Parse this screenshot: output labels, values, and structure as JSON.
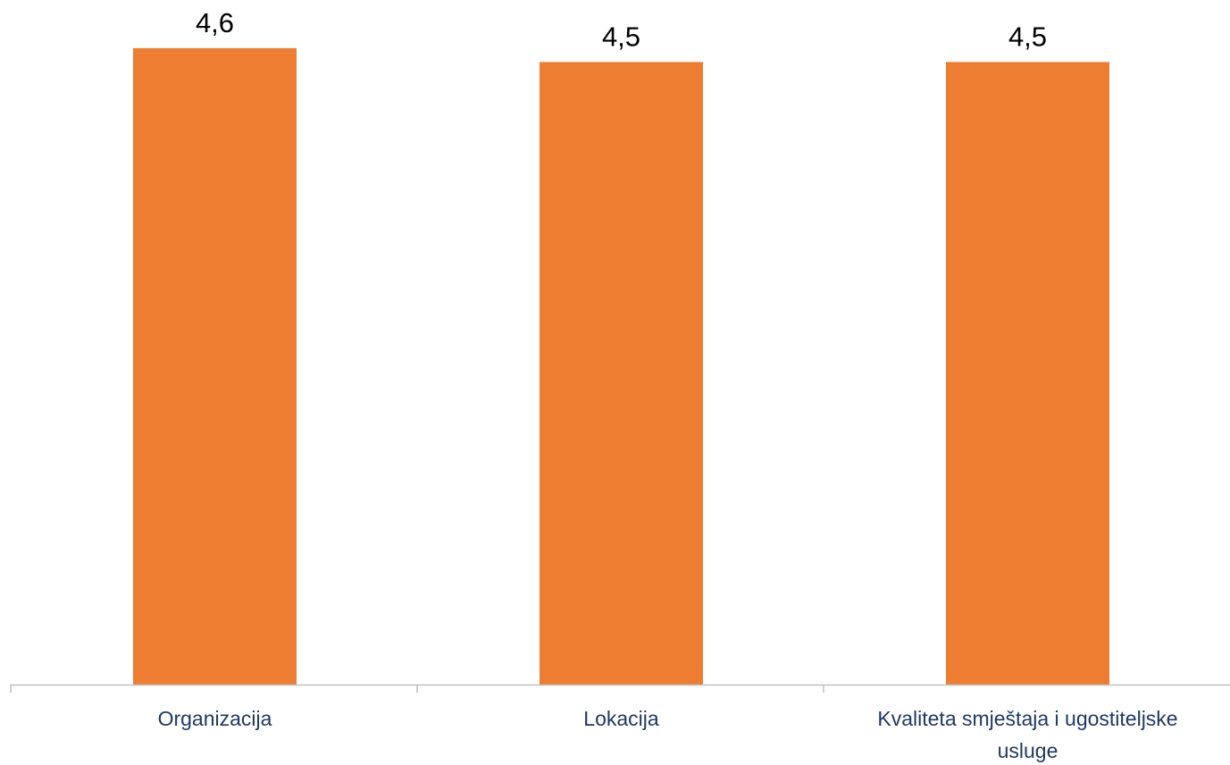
{
  "chart_data": {
    "type": "bar",
    "categories": [
      [
        "Organizacija"
      ],
      [
        "Lokacija"
      ],
      [
        "Kvaliteta smještaja i ugostiteljske",
        "usluge"
      ]
    ],
    "values": [
      4.6,
      4.5,
      4.5
    ],
    "data_labels": [
      "4,6",
      "4,5",
      "4,5"
    ],
    "title": "",
    "xlabel": "",
    "ylabel": "",
    "ylim": [
      0,
      4.6
    ],
    "grid": false,
    "legend": "none",
    "colors": {
      "bar": "#ED7D31",
      "axis": "#BFBFBF",
      "category_text": "#1F3864",
      "data_label_text": "#000000"
    }
  }
}
